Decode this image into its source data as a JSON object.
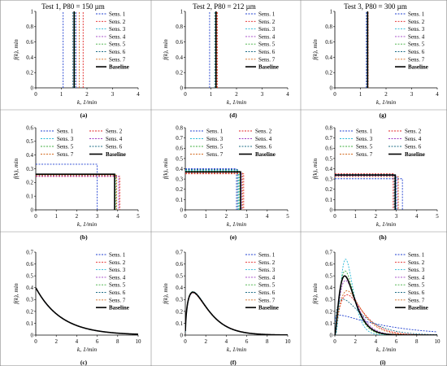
{
  "figure": {
    "column_titles": [
      "Test 1, P80 = 150 µm",
      "Test 2, P80 = 212 µm",
      "Test 3, P80 = 300 µm"
    ]
  },
  "legend_labels": [
    "Sens. 1",
    "Sens. 2",
    "Sens. 3",
    "Sens. 4",
    "Sens. 5",
    "Sens. 6",
    "Sens. 7",
    "Baseline"
  ],
  "series_colors": [
    "#1f3fd0",
    "#e02020",
    "#29b8d6",
    "#9d3cc4",
    "#3fae3f",
    "#1f6c86",
    "#d2691e",
    "#000000"
  ],
  "chart_data": [
    {
      "id": "a",
      "panel_label": "(a)",
      "type": "line",
      "xlabel": "k, 1/min",
      "ylabel": "f(k), min",
      "xlim": [
        0,
        4
      ],
      "ylim": [
        0,
        1
      ],
      "xticks": [
        0,
        1,
        2,
        3,
        4
      ],
      "yticks": [
        0,
        0.2,
        0.4,
        0.6,
        0.8,
        1
      ],
      "ytick_decimals": 1,
      "legend": "right-1col",
      "legend_left": true,
      "kind": "spike",
      "spikes": [
        1.07,
        1.85,
        1.55,
        1.58,
        1.52,
        1.45,
        1.7,
        1.5
      ]
    },
    {
      "id": "d",
      "panel_label": "(d)",
      "type": "line",
      "xlabel": "k, 1/min",
      "ylabel": "f(k), min",
      "xlim": [
        0,
        4
      ],
      "ylim": [
        0,
        1
      ],
      "xticks": [
        0,
        1,
        2,
        3,
        4
      ],
      "yticks": [
        0,
        0.2,
        0.4,
        0.6,
        0.8,
        1
      ],
      "ytick_decimals": 1,
      "legend": "right-1col",
      "legend_left": false,
      "kind": "spike",
      "spikes": [
        0.95,
        1.25,
        1.2,
        1.22,
        1.18,
        1.15,
        1.23,
        1.2
      ]
    },
    {
      "id": "g",
      "panel_label": "(g)",
      "type": "line",
      "xlabel": "k, 1/min",
      "ylabel": "f(k), min",
      "xlim": [
        0,
        4
      ],
      "ylim": [
        0,
        1
      ],
      "xticks": [
        0,
        1,
        2,
        3,
        4
      ],
      "yticks": [
        0,
        0.2,
        0.4,
        0.6,
        0.8,
        1
      ],
      "ytick_decimals": 1,
      "legend": "right-1col",
      "legend_left": false,
      "kind": "spike",
      "spikes": [
        1.23,
        1.3,
        1.27,
        1.29,
        1.28,
        1.26,
        1.3,
        1.28
      ]
    },
    {
      "id": "b",
      "panel_label": "(b)",
      "type": "line",
      "xlabel": "k, 1/min",
      "ylabel": "f(k), min",
      "xlim": [
        0,
        5
      ],
      "ylim": [
        0,
        0.6
      ],
      "xticks": [
        0,
        1,
        2,
        3,
        4,
        5
      ],
      "yticks": [
        0,
        0.1,
        0.2,
        0.3,
        0.4,
        0.5,
        0.6
      ],
      "ytick_decimals": 1,
      "legend": "top-2col",
      "legend_left": true,
      "kind": "step",
      "steps": [
        [
          3.0,
          0.333
        ],
        [
          4.1,
          0.244
        ],
        [
          3.95,
          0.253
        ],
        [
          4.05,
          0.247
        ],
        [
          3.9,
          0.256
        ],
        [
          3.85,
          0.26
        ],
        [
          3.95,
          0.253
        ],
        [
          3.85,
          0.26
        ]
      ]
    },
    {
      "id": "e",
      "panel_label": "(e)",
      "type": "line",
      "xlabel": "k, 1/min",
      "ylabel": "f(k), min",
      "xlim": [
        0,
        5
      ],
      "ylim": [
        0,
        0.8
      ],
      "xticks": [
        0,
        1,
        2,
        3,
        4,
        5
      ],
      "yticks": [
        0,
        0.1,
        0.2,
        0.3,
        0.4,
        0.5,
        0.6,
        0.7,
        0.8
      ],
      "ytick_decimals": 1,
      "legend": "top-2col",
      "legend_left": false,
      "kind": "step",
      "steps": [
        [
          2.5,
          0.4
        ],
        [
          2.85,
          0.351
        ],
        [
          2.6,
          0.385
        ],
        [
          2.75,
          0.364
        ],
        [
          2.65,
          0.377
        ],
        [
          2.55,
          0.392
        ],
        [
          2.8,
          0.357
        ],
        [
          2.7,
          0.37
        ]
      ]
    },
    {
      "id": "h",
      "panel_label": "(h)",
      "type": "line",
      "xlabel": "k, 1/min",
      "ylabel": "f(k), min",
      "xlim": [
        0,
        5
      ],
      "ylim": [
        0,
        0.8
      ],
      "xticks": [
        0,
        1,
        2,
        3,
        4,
        5
      ],
      "yticks": [
        0,
        0.1,
        0.2,
        0.3,
        0.4,
        0.5,
        0.6,
        0.7,
        0.8
      ],
      "ytick_decimals": 1,
      "legend": "top-2col",
      "legend_left": false,
      "kind": "step",
      "steps": [
        [
          3.3,
          0.303
        ],
        [
          2.85,
          0.351
        ],
        [
          3.0,
          0.333
        ],
        [
          3.05,
          0.328
        ],
        [
          2.95,
          0.339
        ],
        [
          2.9,
          0.345
        ],
        [
          3.1,
          0.323
        ],
        [
          2.95,
          0.339
        ]
      ]
    },
    {
      "id": "c",
      "panel_label": "(c)",
      "type": "line",
      "xlabel": "k, 1/min",
      "ylabel": "f(k), min",
      "xlim": [
        0,
        10
      ],
      "ylim": [
        0,
        0.7
      ],
      "xticks": [
        0,
        2,
        4,
        6,
        8,
        10
      ],
      "yticks": [
        0,
        0.1,
        0.2,
        0.3,
        0.4,
        0.5,
        0.6,
        0.7
      ],
      "ytick_decimals": 1,
      "legend": "right-1col",
      "legend_left": true,
      "kind": "gamma",
      "gammas": [
        [
          1,
          2.5
        ],
        [
          1,
          2.5
        ],
        [
          1,
          2.5
        ],
        [
          1,
          2.5
        ],
        [
          1,
          2.5
        ],
        [
          1,
          2.5
        ],
        [
          1,
          2.5
        ],
        [
          1,
          2.5
        ]
      ]
    },
    {
      "id": "f",
      "panel_label": "(f)",
      "type": "line",
      "xlabel": "k, 1/min",
      "ylabel": "f(k), min",
      "xlim": [
        0,
        10
      ],
      "ylim": [
        0,
        0.7
      ],
      "xticks": [
        0,
        2,
        4,
        6,
        8,
        10
      ],
      "yticks": [
        0,
        0.1,
        0.2,
        0.3,
        0.4,
        0.5,
        0.6,
        0.7
      ],
      "ytick_decimals": 1,
      "legend": "right-1col",
      "legend_left": false,
      "kind": "gamma",
      "gammas": [
        [
          1.6,
          1.25
        ],
        [
          1.55,
          1.3
        ],
        [
          1.65,
          1.2
        ],
        [
          1.6,
          1.27
        ],
        [
          1.58,
          1.25
        ],
        [
          1.62,
          1.22
        ],
        [
          1.57,
          1.29
        ],
        [
          1.6,
          1.25
        ]
      ]
    },
    {
      "id": "i",
      "panel_label": "(i)",
      "type": "line",
      "xlabel": "k, 1/min",
      "ylabel": "f(k), min",
      "xlim": [
        0,
        10
      ],
      "ylim": [
        0,
        0.7
      ],
      "xticks": [
        0,
        2,
        4,
        6,
        8,
        10
      ],
      "yticks": [
        0,
        0.1,
        0.2,
        0.3,
        0.4,
        0.5,
        0.6,
        0.7
      ],
      "ytick_decimals": 1,
      "legend": "right-1col",
      "legend_left": false,
      "kind": "gamma",
      "gammas": [
        [
          1.1,
          4.5
        ],
        [
          2.2,
          1.0
        ],
        [
          4.0,
          0.35
        ],
        [
          2.6,
          0.65
        ],
        [
          3.0,
          0.5
        ],
        [
          1.5,
          1.6
        ],
        [
          2.4,
          0.85
        ],
        [
          2.6,
          0.6
        ]
      ]
    }
  ]
}
